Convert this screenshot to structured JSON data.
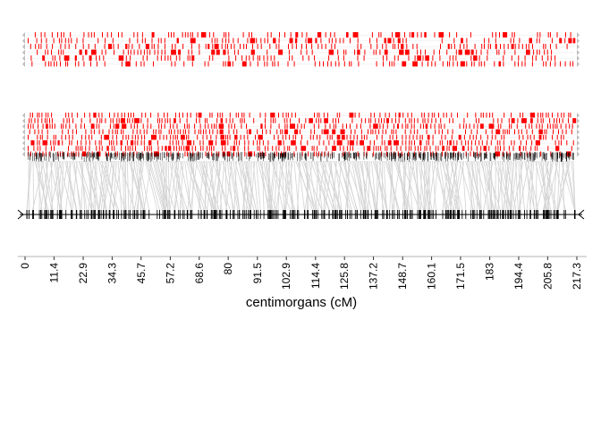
{
  "chart_data": {
    "type": "linkage-map",
    "xlabel": "centimorgans (cM)",
    "xlim": [
      0,
      217.3
    ],
    "xticks": [
      0,
      11.4,
      22.9,
      34.3,
      45.7,
      57.2,
      68.6,
      80,
      91.5,
      102.9,
      114.4,
      125.8,
      137.2,
      148.7,
      160.1,
      171.5,
      183,
      194.4,
      205.8,
      217.3
    ],
    "xtick_labels": [
      "0",
      "11.4",
      "22.9",
      "34.3",
      "45.7",
      "57.2",
      "68.6",
      "80",
      "91.5",
      "102.9",
      "114.4",
      "125.8",
      "137.2",
      "148.7",
      "160.1",
      "171.5",
      "183",
      "194.4",
      "205.8",
      "217.3"
    ],
    "tracks": {
      "upper_haplotypes": {
        "rows": 6,
        "mark_color": "#ff0000",
        "end_color": "#bebebe"
      },
      "lower_haplotypes": {
        "rows": 8,
        "mark_color": "#ff0000",
        "end_color": "#bebebe"
      },
      "connectors": {
        "color": "#d3d3d3"
      },
      "marker_axis": {
        "color": "#000000"
      }
    }
  }
}
